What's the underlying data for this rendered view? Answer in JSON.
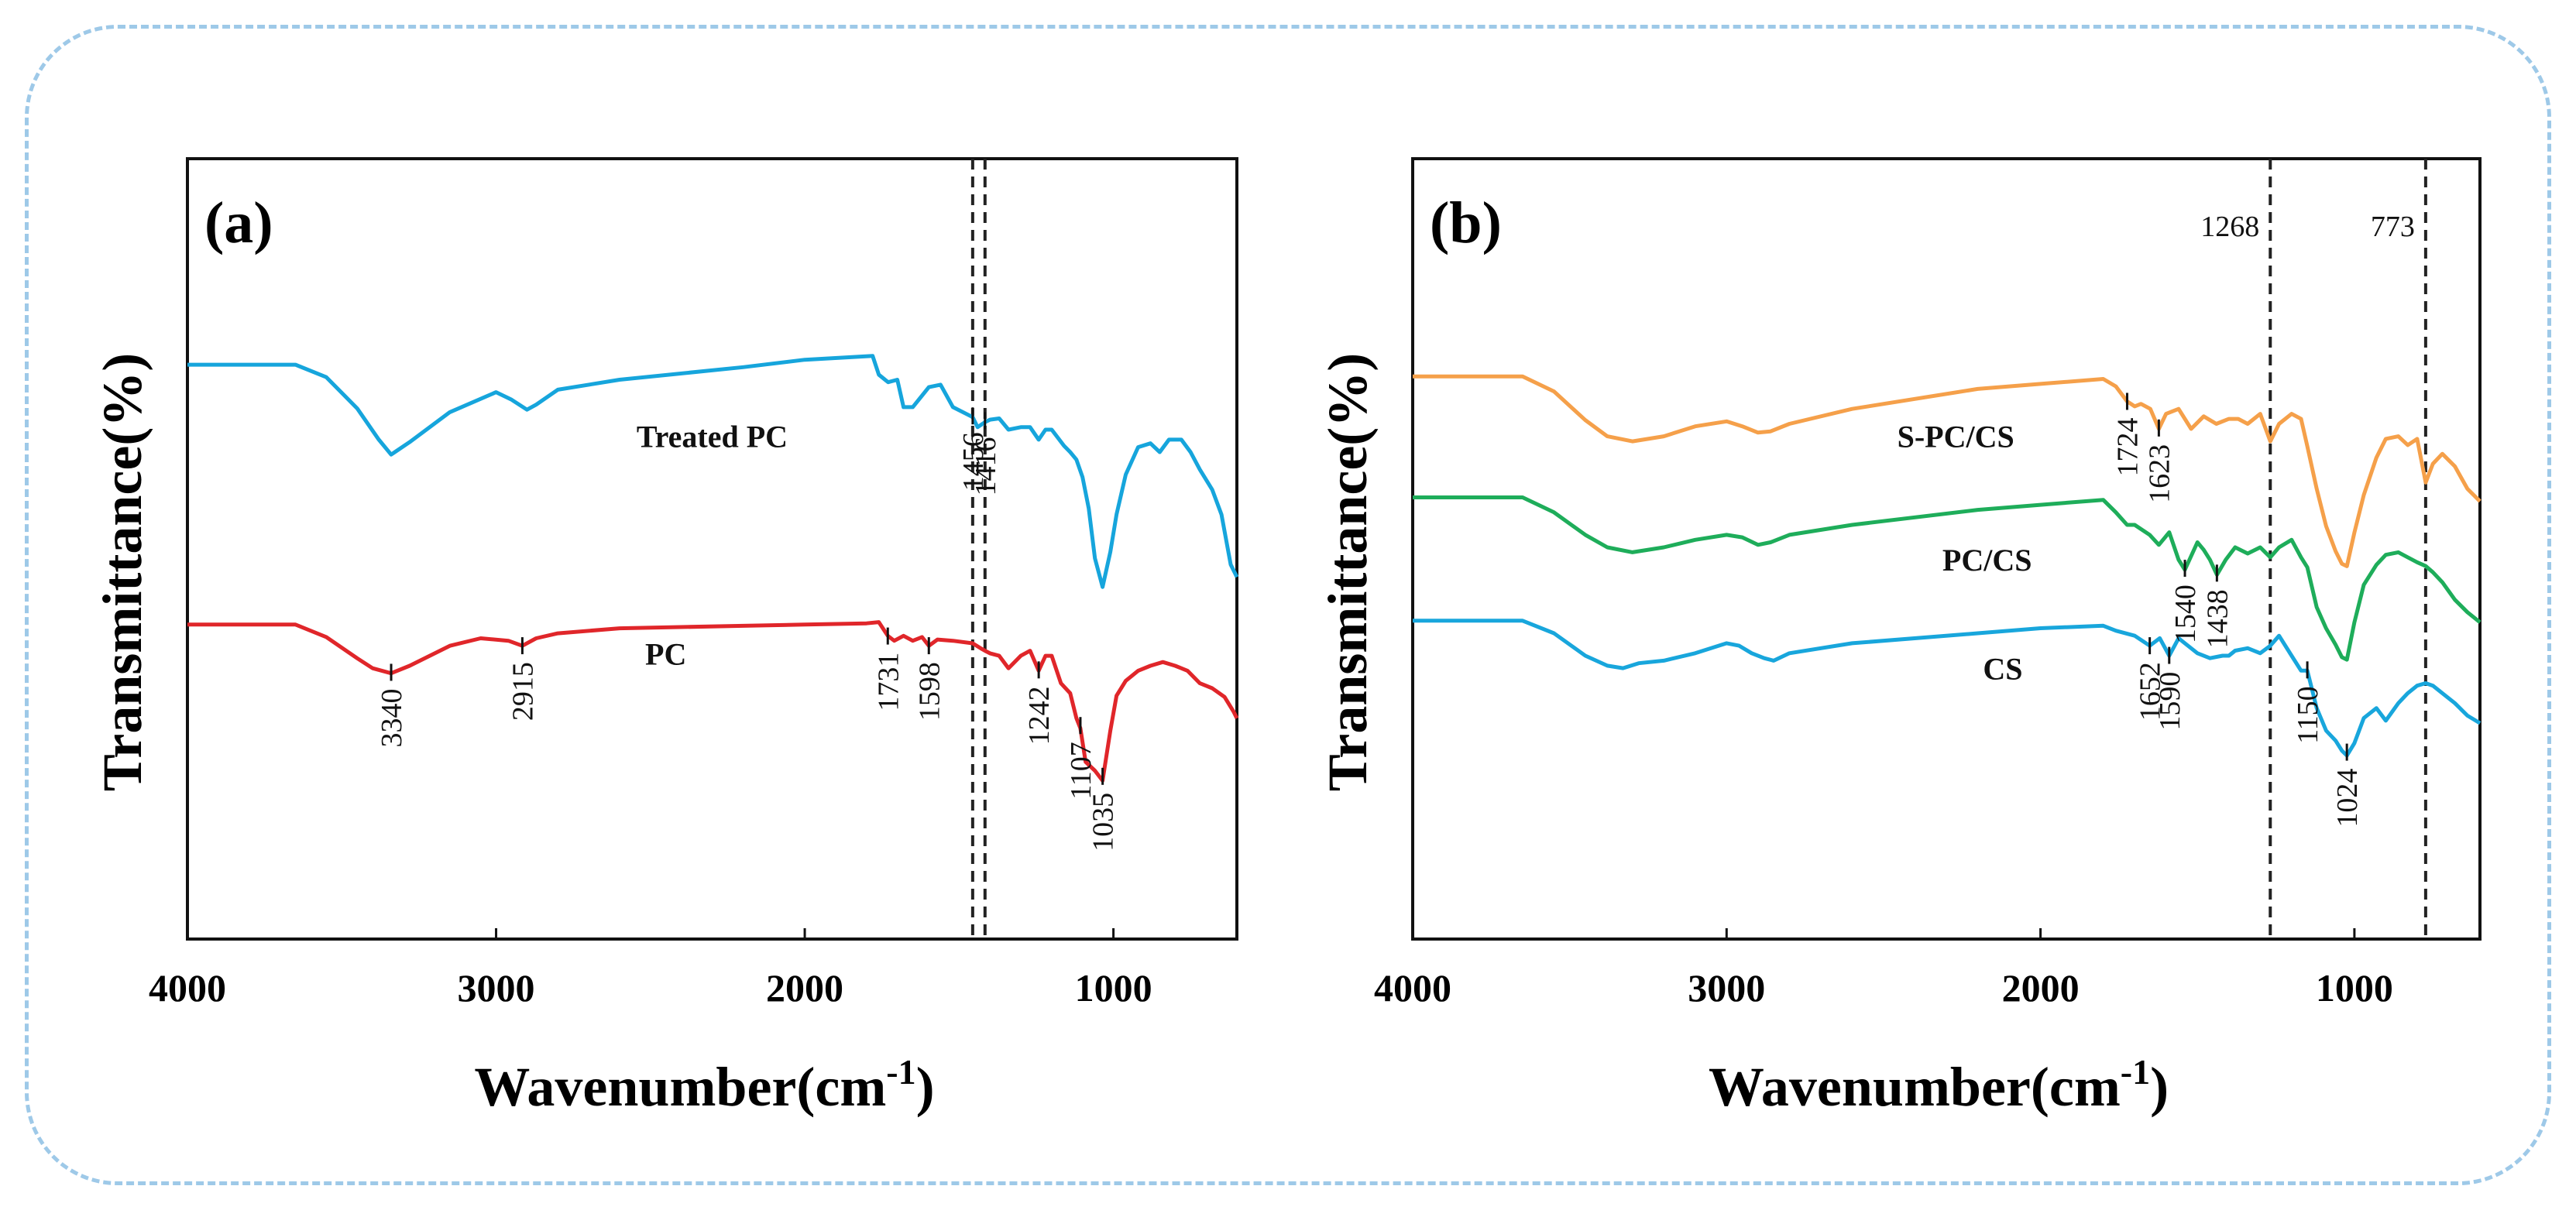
{
  "colors": {
    "frame": "#9ec9e8",
    "blue": "#16a5dc",
    "red": "#e0262a",
    "orange": "#f5a04a",
    "green": "#1ead5a",
    "cs_blue": "#18a6dc"
  },
  "chart_data": [
    {
      "panel": "(a)",
      "type": "line",
      "xlabel": "Wavenumber(cm",
      "xlabel_sup": "-1",
      "xlabel_close": ")",
      "ylabel": "Transmittance(%)",
      "xlim": [
        4000,
        600
      ],
      "xticks": [
        4000,
        3000,
        2000,
        1000
      ],
      "xtick_labels": [
        "4000",
        "3000",
        "2000",
        "1000"
      ],
      "ref_lines": [
        {
          "x": 1456,
          "label": "1456"
        },
        {
          "x": 1416,
          "label": "1416"
        }
      ],
      "series": [
        {
          "name": "Treated PC",
          "color": "#16a5dc",
          "x": [
            4000,
            3650,
            3550,
            3450,
            3380,
            3340,
            3280,
            3150,
            3000,
            2950,
            2900,
            2870,
            2800,
            2600,
            2200,
            2000,
            1780,
            1760,
            1730,
            1700,
            1680,
            1650,
            1598,
            1560,
            1520,
            1456,
            1440,
            1416,
            1400,
            1370,
            1340,
            1300,
            1270,
            1242,
            1220,
            1200,
            1160,
            1140,
            1120,
            1100,
            1080,
            1060,
            1035,
            1010,
            990,
            960,
            920,
            880,
            850,
            820,
            780,
            750,
            720,
            680,
            650,
            620,
            600
          ],
          "y": [
            10,
            10,
            20,
            45,
            70,
            82,
            72,
            48,
            32,
            38,
            46,
            42,
            30,
            22,
            12,
            6,
            3,
            18,
            24,
            22,
            44,
            44,
            28,
            26,
            44,
            52,
            60,
            56,
            54,
            53,
            62,
            60,
            60,
            70,
            62,
            62,
            75,
            80,
            86,
            100,
            125,
            165,
            188,
            160,
            130,
            98,
            76,
            73,
            80,
            70,
            70,
            80,
            94,
            110,
            130,
            170,
            180
          ],
          "y_offset": 160
        },
        {
          "name": "PC",
          "color": "#e0262a",
          "x": [
            4000,
            3650,
            3550,
            3450,
            3400,
            3340,
            3280,
            3150,
            3050,
            2960,
            2915,
            2870,
            2800,
            2600,
            2200,
            2000,
            1800,
            1760,
            1731,
            1710,
            1680,
            1650,
            1620,
            1598,
            1570,
            1520,
            1456,
            1430,
            1416,
            1400,
            1370,
            1340,
            1300,
            1270,
            1242,
            1220,
            1200,
            1170,
            1140,
            1120,
            1107,
            1090,
            1060,
            1035,
            1010,
            990,
            960,
            920,
            880,
            840,
            800,
            760,
            720,
            680,
            640,
            610,
            600
          ],
          "y": [
            5,
            5,
            15,
            32,
            40,
            44,
            38,
            22,
            16,
            18,
            22,
            16,
            12,
            8,
            6,
            5,
            4,
            3,
            14,
            18,
            14,
            18,
            15,
            22,
            17,
            18,
            20,
            24,
            26,
            28,
            30,
            40,
            30,
            26,
            42,
            30,
            30,
            52,
            60,
            80,
            88,
            115,
            122,
            130,
            90,
            62,
            50,
            42,
            38,
            35,
            38,
            42,
            52,
            56,
            63,
            75,
            80
          ],
          "y_offset": 380
        }
      ],
      "series_labels": [
        {
          "series": "Treated PC",
          "text": "Treated PC",
          "x": 2300,
          "y": 232
        },
        {
          "series": "PC",
          "text": "PC",
          "x": 2450,
          "y": 412
        }
      ],
      "peak_labels": [
        {
          "x": 3340,
          "label": "3340",
          "y_tip": 424
        },
        {
          "x": 2915,
          "label": "2915",
          "y_tip": 402
        },
        {
          "x": 1731,
          "label": "1731",
          "y_tip": 394
        },
        {
          "x": 1598,
          "label": "1598",
          "y_tip": 402
        },
        {
          "x": 1456,
          "label": "1456",
          "y_tip": 212
        },
        {
          "x": 1416,
          "label": "1416",
          "y_tip": 216
        },
        {
          "x": 1242,
          "label": "1242",
          "y_tip": 422
        },
        {
          "x": 1107,
          "label": "1107",
          "y_tip": 468
        },
        {
          "x": 1035,
          "label": "1035",
          "y_tip": 510
        }
      ]
    },
    {
      "panel": "(b)",
      "type": "line",
      "xlabel": "Wavenumber(cm",
      "xlabel_sup": "-1",
      "xlabel_close": ")",
      "ylabel": "Transmittance(%)",
      "xlim": [
        4000,
        600
      ],
      "xticks": [
        4000,
        3000,
        2000,
        1000
      ],
      "xtick_labels": [
        "4000",
        "3000",
        "2000",
        "1000"
      ],
      "ref_lines": [
        {
          "x": 1268,
          "label": "1268"
        },
        {
          "x": 773,
          "label": "773"
        }
      ],
      "series": [
        {
          "name": "S-PC/CS",
          "color": "#f5a04a",
          "x": [
            4000,
            3650,
            3550,
            3450,
            3380,
            3300,
            3200,
            3100,
            3000,
            2950,
            2900,
            2860,
            2800,
            2600,
            2200,
            2000,
            1800,
            1760,
            1724,
            1700,
            1680,
            1650,
            1623,
            1600,
            1560,
            1520,
            1480,
            1440,
            1400,
            1370,
            1340,
            1300,
            1268,
            1240,
            1200,
            1170,
            1150,
            1120,
            1090,
            1060,
            1040,
            1024,
            1000,
            970,
            930,
            900,
            860,
            830,
            800,
            773,
            750,
            720,
            680,
            640,
            600
          ],
          "y": [
            0,
            0,
            12,
            35,
            48,
            52,
            48,
            40,
            36,
            40,
            45,
            44,
            38,
            26,
            10,
            6,
            2,
            8,
            20,
            24,
            22,
            26,
            42,
            30,
            26,
            42,
            32,
            38,
            34,
            34,
            38,
            30,
            52,
            38,
            30,
            34,
            56,
            90,
            120,
            140,
            150,
            152,
            125,
            95,
            65,
            50,
            48,
            55,
            50,
            85,
            70,
            62,
            72,
            90,
            100
          ],
          "y_offset": 180
        },
        {
          "name": "PC/CS",
          "color": "#1ead5a",
          "x": [
            4000,
            3650,
            3550,
            3450,
            3380,
            3300,
            3200,
            3100,
            3000,
            2950,
            2900,
            2860,
            2800,
            2600,
            2200,
            2000,
            1800,
            1760,
            1724,
            1700,
            1652,
            1623,
            1590,
            1560,
            1540,
            1500,
            1480,
            1460,
            1438,
            1410,
            1380,
            1340,
            1300,
            1268,
            1240,
            1200,
            1170,
            1150,
            1120,
            1090,
            1060,
            1040,
            1024,
            1000,
            970,
            930,
            900,
            860,
            830,
            800,
            773,
            750,
            720,
            680,
            640,
            600
          ],
          "y": [
            0,
            0,
            12,
            30,
            40,
            44,
            40,
            34,
            30,
            32,
            38,
            36,
            30,
            22,
            10,
            6,
            2,
            12,
            22,
            22,
            30,
            38,
            28,
            50,
            58,
            36,
            42,
            50,
            62,
            50,
            40,
            45,
            40,
            48,
            40,
            34,
            48,
            56,
            88,
            105,
            118,
            128,
            130,
            100,
            70,
            54,
            46,
            44,
            48,
            52,
            55,
            60,
            68,
            82,
            92,
            100
          ],
          "y_offset": 280
        },
        {
          "name": "CS",
          "color": "#18a6dc",
          "x": [
            4000,
            3650,
            3550,
            3450,
            3380,
            3330,
            3280,
            3200,
            3100,
            3000,
            2960,
            2920,
            2880,
            2850,
            2800,
            2600,
            2200,
            2000,
            1800,
            1760,
            1700,
            1652,
            1620,
            1590,
            1560,
            1540,
            1500,
            1460,
            1420,
            1400,
            1380,
            1340,
            1300,
            1268,
            1240,
            1200,
            1170,
            1150,
            1120,
            1090,
            1060,
            1040,
            1024,
            1000,
            970,
            930,
            900,
            860,
            830,
            800,
            773,
            750,
            720,
            680,
            640,
            600
          ],
          "y": [
            0,
            0,
            10,
            28,
            36,
            38,
            34,
            32,
            26,
            18,
            20,
            26,
            30,
            32,
            26,
            18,
            10,
            6,
            4,
            8,
            12,
            20,
            14,
            28,
            14,
            18,
            26,
            30,
            28,
            28,
            24,
            22,
            26,
            20,
            12,
            28,
            40,
            40,
            70,
            88,
            96,
            104,
            108,
            98,
            78,
            70,
            80,
            66,
            58,
            52,
            50,
            52,
            58,
            66,
            76,
            82
          ],
          "y_offset": 382
        }
      ],
      "series_labels": [
        {
          "series": "S-PC/CS",
          "text": "S-PC/CS",
          "x": 2270,
          "y": 232
        },
        {
          "series": "PC/CS",
          "text": "PC/CS",
          "x": 2170,
          "y": 334
        },
        {
          "series": "CS",
          "text": "CS",
          "x": 2120,
          "y": 424
        }
      ],
      "peak_labels": [
        {
          "x": 1724,
          "label": "1724",
          "y_tip": 200
        },
        {
          "x": 1623,
          "label": "1623",
          "y_tip": 222
        },
        {
          "x": 1652,
          "label": "1652",
          "y_tip": 402
        },
        {
          "x": 1590,
          "label": "1590",
          "y_tip": 410
        },
        {
          "x": 1540,
          "label": "1540",
          "y_tip": 338
        },
        {
          "x": 1438,
          "label": "1438",
          "y_tip": 342
        },
        {
          "x": 1150,
          "label": "1150",
          "y_tip": 422
        },
        {
          "x": 1024,
          "label": "1024",
          "y_tip": 490
        }
      ],
      "ref_line_labels": [
        {
          "x": 1268,
          "label": "1268"
        },
        {
          "x": 773,
          "label": "773"
        }
      ]
    }
  ]
}
